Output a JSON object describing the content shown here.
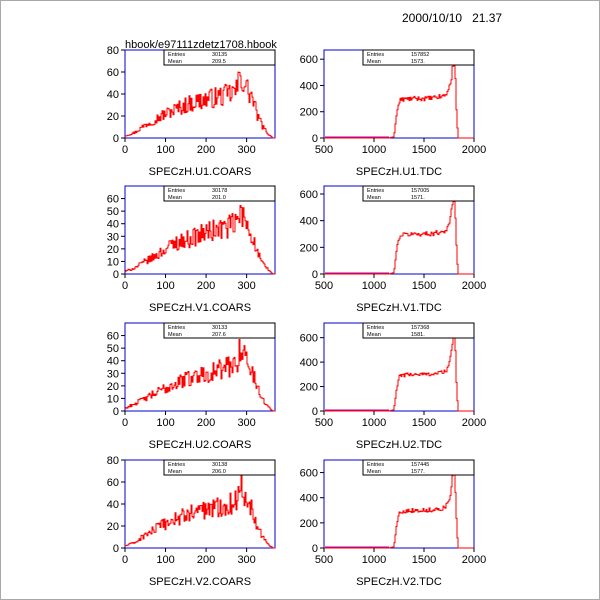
{
  "header": {
    "date": "2000/10/10",
    "time": "21.37",
    "file": "hbook/e97111zdetz1708.hbook"
  },
  "colors": {
    "frame": "#0000cc",
    "data": "#ff0000",
    "axis": "#000000",
    "underflow": "#aa00aa"
  },
  "chart_data": [
    {
      "type": "histogram",
      "title": "SPECzH.U1.COARS",
      "xlim": [
        0,
        370
      ],
      "ylim": [
        0,
        80
      ],
      "xticks": [
        0,
        100,
        200,
        300
      ],
      "yticks": [
        0,
        20,
        40,
        60,
        80
      ],
      "stats": [
        {
          "label": "Entries",
          "value": "30135"
        },
        {
          "label": "Mean",
          "value": "209.5"
        }
      ],
      "x": [
        0,
        25,
        50,
        75,
        100,
        125,
        150,
        175,
        200,
        225,
        250,
        275,
        285,
        300,
        315,
        325,
        340,
        355,
        365
      ],
      "values": [
        2,
        5,
        12,
        17,
        22,
        26,
        30,
        33,
        35,
        37,
        39,
        43,
        57,
        45,
        36,
        22,
        10,
        3,
        0
      ]
    },
    {
      "type": "histogram",
      "title": "SPECzH.U1.TDC",
      "xlim": [
        500,
        2000
      ],
      "ylim": [
        0,
        670
      ],
      "xticks": [
        500,
        1000,
        1500,
        2000
      ],
      "yticks": [
        0,
        200,
        400,
        600
      ],
      "stats": [
        {
          "label": "Entries",
          "value": "157852"
        },
        {
          "label": "Mean",
          "value": "1573."
        }
      ],
      "x": [
        500,
        1150,
        1200,
        1230,
        1260,
        1300,
        1400,
        1500,
        1600,
        1700,
        1740,
        1770,
        1790,
        1810,
        1820,
        1840,
        1860,
        2000
      ],
      "values": [
        0,
        0,
        10,
        200,
        290,
        295,
        300,
        300,
        305,
        320,
        350,
        440,
        550,
        560,
        300,
        0,
        0,
        0
      ]
    },
    {
      "type": "histogram",
      "title": "SPECzH.V1.COARS",
      "xlim": [
        0,
        370
      ],
      "ylim": [
        0,
        70
      ],
      "xticks": [
        0,
        100,
        200,
        300
      ],
      "yticks": [
        0,
        10,
        20,
        30,
        40,
        50,
        60
      ],
      "stats": [
        {
          "label": "Entries",
          "value": "30178"
        },
        {
          "label": "Mean",
          "value": "201.0"
        }
      ],
      "x": [
        0,
        25,
        50,
        75,
        100,
        125,
        150,
        175,
        200,
        225,
        250,
        275,
        285,
        300,
        315,
        325,
        340,
        355,
        365
      ],
      "values": [
        2,
        5,
        10,
        14,
        20,
        25,
        27,
        30,
        33,
        35,
        37,
        40,
        48,
        40,
        30,
        18,
        8,
        3,
        0
      ]
    },
    {
      "type": "histogram",
      "title": "SPECzH.V1.TDC",
      "xlim": [
        500,
        2000
      ],
      "ylim": [
        0,
        660
      ],
      "xticks": [
        500,
        1000,
        1500,
        2000
      ],
      "yticks": [
        0,
        200,
        400,
        600
      ],
      "stats": [
        {
          "label": "Entries",
          "value": "157005"
        },
        {
          "label": "Mean",
          "value": "1571."
        }
      ],
      "x": [
        500,
        1150,
        1200,
        1230,
        1260,
        1300,
        1400,
        1500,
        1600,
        1700,
        1740,
        1770,
        1790,
        1810,
        1820,
        1840,
        1860,
        2000
      ],
      "values": [
        0,
        0,
        10,
        200,
        290,
        295,
        300,
        300,
        305,
        320,
        350,
        440,
        540,
        550,
        300,
        0,
        0,
        0
      ]
    },
    {
      "type": "histogram",
      "title": "SPECzH.U2.COARS",
      "xlim": [
        0,
        370
      ],
      "ylim": [
        0,
        70
      ],
      "xticks": [
        0,
        100,
        200,
        300
      ],
      "yticks": [
        0,
        10,
        20,
        30,
        40,
        50,
        60
      ],
      "stats": [
        {
          "label": "Entries",
          "value": "30133"
        },
        {
          "label": "Mean",
          "value": "207.6"
        }
      ],
      "x": [
        0,
        25,
        50,
        75,
        100,
        125,
        150,
        175,
        200,
        225,
        250,
        275,
        285,
        300,
        315,
        325,
        340,
        355,
        365
      ],
      "values": [
        2,
        6,
        10,
        14,
        18,
        22,
        25,
        28,
        30,
        32,
        34,
        38,
        52,
        40,
        30,
        20,
        9,
        3,
        0
      ]
    },
    {
      "type": "histogram",
      "title": "SPECzH.U2.TDC",
      "xlim": [
        500,
        2000
      ],
      "ylim": [
        0,
        720
      ],
      "xticks": [
        500,
        1000,
        1500,
        2000
      ],
      "yticks": [
        0,
        200,
        400,
        600
      ],
      "stats": [
        {
          "label": "Entries",
          "value": "157368"
        },
        {
          "label": "Mean",
          "value": "1581."
        }
      ],
      "x": [
        500,
        1150,
        1200,
        1230,
        1260,
        1300,
        1400,
        1500,
        1600,
        1700,
        1740,
        1770,
        1790,
        1810,
        1820,
        1840,
        1860,
        2000
      ],
      "values": [
        0,
        0,
        10,
        200,
        290,
        295,
        300,
        300,
        305,
        320,
        350,
        440,
        600,
        640,
        320,
        0,
        0,
        0
      ]
    },
    {
      "type": "histogram",
      "title": "SPECzH.V2.COARS",
      "xlim": [
        0,
        370
      ],
      "ylim": [
        0,
        80
      ],
      "xticks": [
        0,
        100,
        200,
        300
      ],
      "yticks": [
        0,
        20,
        40,
        60,
        80
      ],
      "stats": [
        {
          "label": "Entries",
          "value": "30138"
        },
        {
          "label": "Mean",
          "value": "206.0"
        }
      ],
      "x": [
        0,
        25,
        50,
        75,
        100,
        125,
        150,
        175,
        200,
        225,
        250,
        275,
        285,
        300,
        315,
        325,
        340,
        355,
        365
      ],
      "values": [
        2,
        5,
        12,
        17,
        22,
        26,
        30,
        33,
        35,
        37,
        39,
        43,
        57,
        45,
        36,
        22,
        10,
        3,
        0
      ]
    },
    {
      "type": "histogram",
      "title": "SPECzH.V2.TDC",
      "xlim": [
        500,
        2000
      ],
      "ylim": [
        0,
        700
      ],
      "xticks": [
        500,
        1000,
        1500,
        2000
      ],
      "yticks": [
        0,
        200,
        400,
        600
      ],
      "stats": [
        {
          "label": "Entries",
          "value": "157445"
        },
        {
          "label": "Mean",
          "value": "1577."
        }
      ],
      "x": [
        500,
        1150,
        1200,
        1230,
        1260,
        1300,
        1400,
        1500,
        1600,
        1700,
        1740,
        1770,
        1790,
        1810,
        1820,
        1840,
        1860,
        2000
      ],
      "values": [
        0,
        0,
        10,
        200,
        290,
        295,
        300,
        300,
        305,
        320,
        350,
        440,
        580,
        600,
        320,
        0,
        0,
        0
      ]
    }
  ]
}
